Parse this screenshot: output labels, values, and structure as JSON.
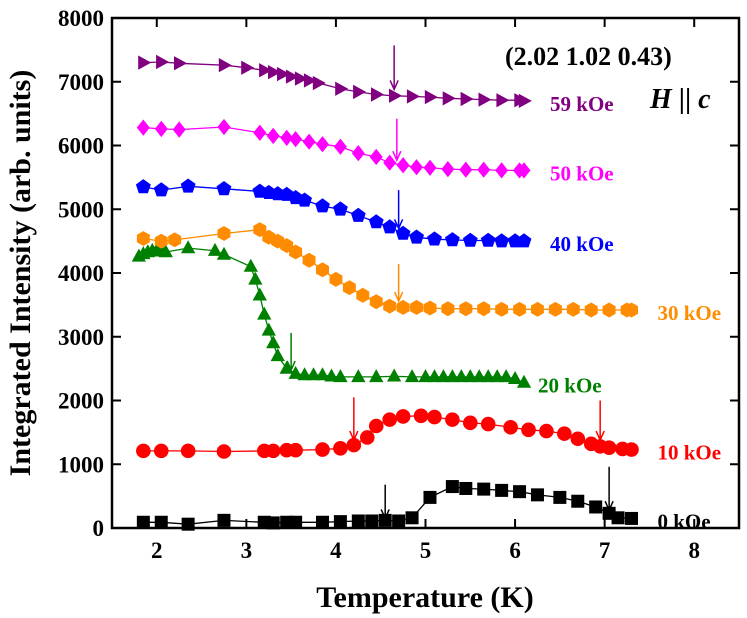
{
  "chart_data": {
    "type": "scatter",
    "xlabel": "Temperature (K)",
    "ylabel": "Integrated Intensity (arb. units)",
    "xlim": [
      1.5,
      8.5
    ],
    "ylim": [
      0,
      8000
    ],
    "xticks": [
      2,
      3,
      4,
      5,
      6,
      7,
      8
    ],
    "yticks": [
      0,
      1000,
      2000,
      3000,
      4000,
      5000,
      6000,
      7000,
      8000
    ],
    "grid": false,
    "annotations": {
      "hkl": "(2.02 1.02 0.43)",
      "field_direction_italic_1": "H",
      "field_direction_mid": " || ",
      "field_direction_italic_2": "c"
    },
    "series": [
      {
        "name": "0 kOe",
        "color": "#000000",
        "marker": "square",
        "x": [
          1.85,
          2.05,
          2.35,
          2.75,
          3.2,
          3.3,
          3.45,
          3.55,
          3.85,
          4.05,
          4.25,
          4.4,
          4.55,
          4.7,
          4.85,
          5.05,
          5.3,
          5.45,
          5.65,
          5.85,
          6.05,
          6.25,
          6.5,
          6.7,
          6.9,
          7.05,
          7.15,
          7.3
        ],
        "y": [
          90,
          90,
          60,
          120,
          90,
          80,
          90,
          90,
          90,
          100,
          110,
          110,
          120,
          110,
          160,
          480,
          650,
          620,
          610,
          590,
          570,
          520,
          480,
          420,
          330,
          230,
          160,
          150
        ]
      },
      {
        "name": "10 kOe",
        "color": "#ff0000",
        "marker": "circle",
        "x": [
          1.85,
          2.05,
          2.35,
          2.75,
          3.2,
          3.3,
          3.45,
          3.55,
          3.85,
          4.05,
          4.2,
          4.35,
          4.45,
          4.6,
          4.75,
          4.95,
          5.1,
          5.3,
          5.5,
          5.7,
          5.95,
          6.15,
          6.35,
          6.55,
          6.7,
          6.85,
          6.95,
          7.05,
          7.2,
          7.3
        ],
        "y": [
          1210,
          1210,
          1210,
          1200,
          1210,
          1210,
          1220,
          1220,
          1230,
          1250,
          1300,
          1420,
          1600,
          1700,
          1750,
          1760,
          1740,
          1700,
          1650,
          1630,
          1580,
          1540,
          1520,
          1480,
          1400,
          1320,
          1280,
          1260,
          1240,
          1230
        ]
      },
      {
        "name": "20 kOe",
        "color": "#008000",
        "marker": "triangle",
        "x": [
          1.8,
          1.85,
          1.9,
          1.95,
          2.0,
          2.05,
          2.1,
          2.35,
          2.65,
          2.75,
          3.05,
          3.1,
          3.15,
          3.2,
          3.25,
          3.3,
          3.35,
          3.45,
          3.55,
          3.65,
          3.75,
          3.85,
          3.95,
          4.05,
          4.25,
          4.45,
          4.65,
          4.85,
          5.0,
          5.1,
          5.2,
          5.3,
          5.4,
          5.5,
          5.6,
          5.7,
          5.8,
          5.9,
          6.0,
          6.1
        ],
        "y": [
          4260,
          4300,
          4330,
          4350,
          4350,
          4340,
          4330,
          4390,
          4350,
          4290,
          4100,
          3900,
          3650,
          3350,
          3100,
          2900,
          2700,
          2500,
          2420,
          2400,
          2400,
          2400,
          2380,
          2370,
          2370,
          2370,
          2380,
          2370,
          2370,
          2370,
          2370,
          2370,
          2370,
          2370,
          2370,
          2370,
          2370,
          2370,
          2340,
          2280
        ]
      },
      {
        "name": "30 kOe",
        "color": "#ff8c00",
        "marker": "hexagon",
        "x": [
          1.85,
          2.05,
          2.2,
          2.75,
          3.15,
          3.25,
          3.35,
          3.45,
          3.55,
          3.7,
          3.85,
          4.0,
          4.15,
          4.3,
          4.45,
          4.6,
          4.75,
          4.9,
          5.05,
          5.25,
          5.45,
          5.65,
          5.85,
          6.05,
          6.25,
          6.45,
          6.65,
          6.85,
          7.05,
          7.25,
          7.3
        ],
        "y": [
          4540,
          4500,
          4520,
          4620,
          4680,
          4560,
          4500,
          4430,
          4330,
          4200,
          4050,
          3900,
          3770,
          3650,
          3550,
          3480,
          3460,
          3460,
          3450,
          3440,
          3440,
          3440,
          3430,
          3430,
          3430,
          3430,
          3430,
          3420,
          3420,
          3420,
          3420
        ]
      },
      {
        "name": "40 kOe",
        "color": "#0000ff",
        "marker": "pentagon",
        "x": [
          1.85,
          2.05,
          2.35,
          2.75,
          3.15,
          3.25,
          3.35,
          3.45,
          3.55,
          3.65,
          3.85,
          4.05,
          4.25,
          4.45,
          4.6,
          4.75,
          4.9,
          5.1,
          5.3,
          5.5,
          5.7,
          5.85,
          6.0,
          6.1
        ],
        "y": [
          5350,
          5300,
          5360,
          5320,
          5280,
          5260,
          5240,
          5230,
          5180,
          5140,
          5050,
          5000,
          4900,
          4800,
          4720,
          4620,
          4560,
          4530,
          4520,
          4510,
          4510,
          4500,
          4500,
          4500
        ]
      },
      {
        "name": "50 kOe",
        "color": "#ff00ff",
        "marker": "diamond",
        "x": [
          1.85,
          2.05,
          2.25,
          2.75,
          3.15,
          3.3,
          3.45,
          3.55,
          3.7,
          3.85,
          4.05,
          4.25,
          4.45,
          4.6,
          4.75,
          4.9,
          5.05,
          5.25,
          5.45,
          5.65,
          5.85,
          6.05,
          6.1
        ],
        "y": [
          6280,
          6260,
          6250,
          6290,
          6200,
          6150,
          6120,
          6100,
          6060,
          6020,
          5980,
          5880,
          5820,
          5730,
          5690,
          5660,
          5650,
          5630,
          5620,
          5620,
          5610,
          5610,
          5610
        ]
      },
      {
        "name": "59 kOe",
        "color": "#800080",
        "marker": "triangle-right",
        "x": [
          1.85,
          2.05,
          2.25,
          2.75,
          3.0,
          3.2,
          3.3,
          3.4,
          3.5,
          3.6,
          3.7,
          3.8,
          4.05,
          4.25,
          4.45,
          4.65,
          4.85,
          5.05,
          5.25,
          5.45,
          5.65,
          5.85,
          6.05,
          6.1
        ],
        "y": [
          7300,
          7310,
          7290,
          7260,
          7220,
          7180,
          7150,
          7120,
          7080,
          7050,
          7020,
          6980,
          6890,
          6840,
          6800,
          6780,
          6770,
          6760,
          6740,
          6730,
          6720,
          6710,
          6710,
          6700
        ]
      }
    ],
    "arrows": [
      {
        "series": "0 kOe",
        "color": "#000000",
        "x": 4.55,
        "y_top": 680,
        "y_tip": 150
      },
      {
        "series": "0 kOe",
        "color": "#000000",
        "x": 7.05,
        "y_top": 960,
        "y_tip": 280
      },
      {
        "series": "10 kOe",
        "color": "#ff0000",
        "x": 4.2,
        "y_top": 2050,
        "y_tip": 1380
      },
      {
        "series": "10 kOe",
        "color": "#ff0000",
        "x": 6.95,
        "y_top": 2000,
        "y_tip": 1380
      },
      {
        "series": "20 kOe",
        "color": "#008000",
        "x": 3.5,
        "y_top": 3060,
        "y_tip": 2480
      },
      {
        "series": "30 kOe",
        "color": "#ff8c00",
        "x": 4.7,
        "y_top": 4140,
        "y_tip": 3560
      },
      {
        "series": "40 kOe",
        "color": "#0000ff",
        "x": 4.7,
        "y_top": 5300,
        "y_tip": 4700
      },
      {
        "series": "50 kOe",
        "color": "#ff00ff",
        "x": 4.68,
        "y_top": 6420,
        "y_tip": 5770
      },
      {
        "series": "59 kOe",
        "color": "#800080",
        "x": 4.65,
        "y_top": 7570,
        "y_tip": 6880
      }
    ]
  }
}
